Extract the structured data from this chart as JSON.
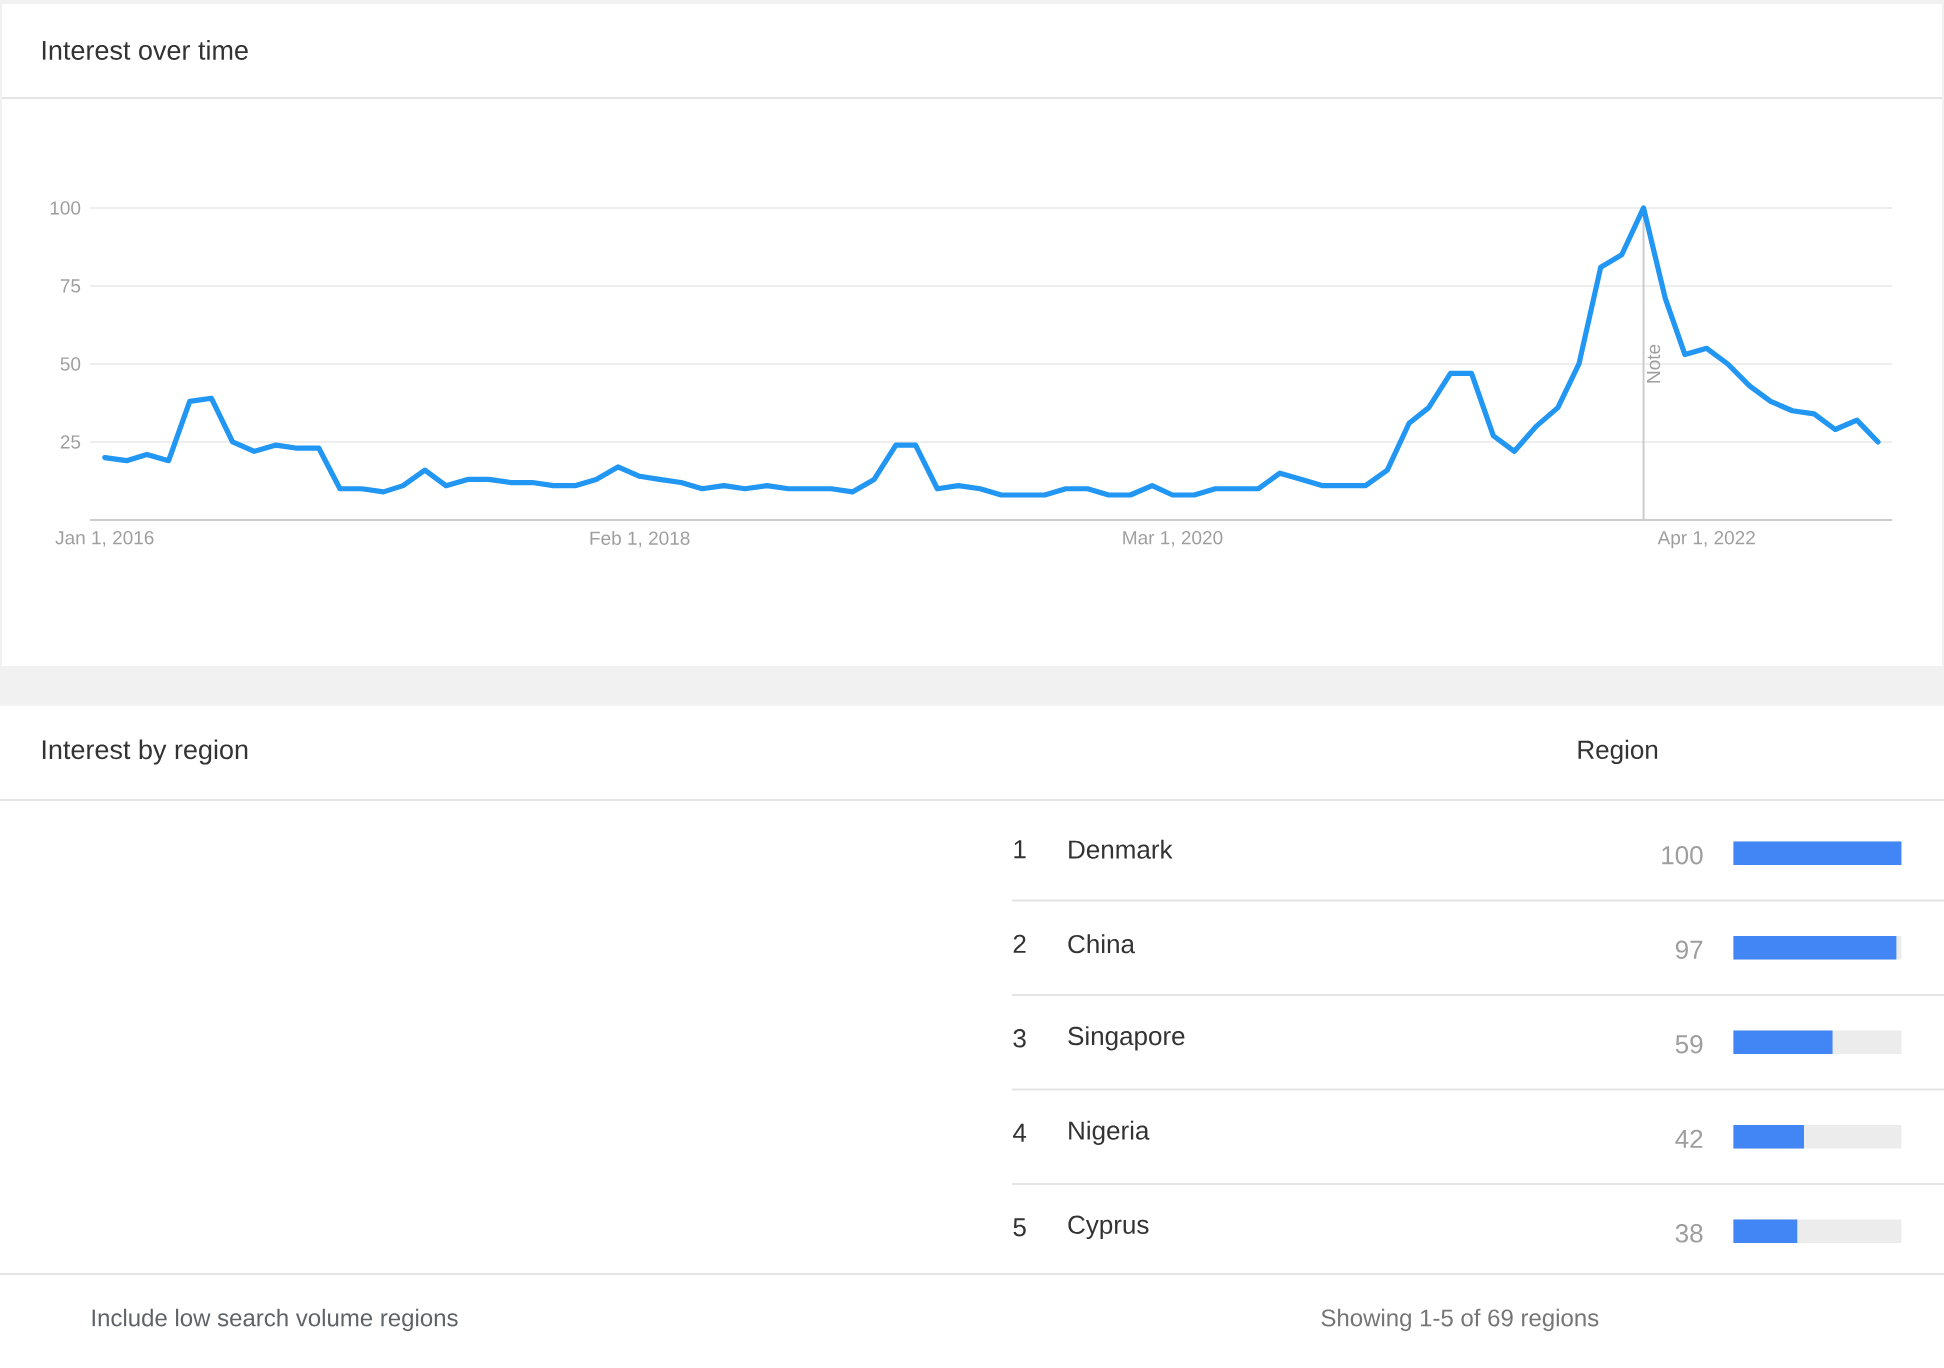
{
  "chart_data": [
    {
      "type": "line",
      "title": "Interest over time",
      "x": [
        "2016-01",
        "2016-02",
        "2016-03",
        "2016-04",
        "2016-05",
        "2016-06",
        "2016-07",
        "2016-08",
        "2016-09",
        "2016-10",
        "2016-11",
        "2016-12",
        "2017-01",
        "2017-02",
        "2017-03",
        "2017-04",
        "2017-05",
        "2017-06",
        "2017-07",
        "2017-08",
        "2017-09",
        "2017-10",
        "2017-11",
        "2017-12",
        "2018-01",
        "2018-02",
        "2018-03",
        "2018-04",
        "2018-05",
        "2018-06",
        "2018-07",
        "2018-08",
        "2018-09",
        "2018-10",
        "2018-11",
        "2018-12",
        "2019-01",
        "2019-02",
        "2019-03",
        "2019-04",
        "2019-05",
        "2019-06",
        "2019-07",
        "2019-08",
        "2019-09",
        "2019-10",
        "2019-11",
        "2019-12",
        "2020-01",
        "2020-02",
        "2020-03",
        "2020-04",
        "2020-05",
        "2020-06",
        "2020-07",
        "2020-08",
        "2020-09",
        "2020-10",
        "2020-11",
        "2020-12",
        "2021-01",
        "2021-02",
        "2021-03",
        "2021-04",
        "2021-05",
        "2021-06",
        "2021-07",
        "2021-08",
        "2021-09",
        "2021-10",
        "2021-11",
        "2021-12",
        "2022-01",
        "2022-02",
        "2022-03",
        "2022-04",
        "2022-05",
        "2022-06",
        "2022-07",
        "2022-08",
        "2022-09",
        "2022-10",
        "2022-11",
        "2022-12"
      ],
      "values": [
        20,
        19,
        21,
        19,
        38,
        39,
        25,
        22,
        24,
        23,
        23,
        10,
        10,
        9,
        11,
        16,
        11,
        13,
        13,
        12,
        12,
        11,
        11,
        13,
        17,
        14,
        13,
        12,
        10,
        11,
        10,
        11,
        10,
        10,
        10,
        9,
        13,
        24,
        24,
        10,
        11,
        10,
        8,
        8,
        8,
        10,
        10,
        8,
        8,
        11,
        8,
        8,
        10,
        10,
        10,
        15,
        13,
        11,
        11,
        11,
        16,
        31,
        36,
        47,
        47,
        27,
        22,
        30,
        36,
        50,
        81,
        85,
        100,
        71,
        53,
        55,
        50,
        43,
        38,
        35,
        34,
        29,
        32,
        25
      ],
      "color": "#2196f3",
      "xlim": [
        "2015-12-11",
        "2022-12-21"
      ],
      "xticks": [
        {
          "value": "2016-01-01",
          "label": "Jan 1, 2016"
        },
        {
          "value": "2018-02-01",
          "label": "Feb 1, 2018"
        },
        {
          "value": "2020-03-01",
          "label": "Mar 1, 2020"
        },
        {
          "value": "2022-04-01",
          "label": "Apr 1, 2022"
        }
      ],
      "ylim": [
        0,
        100
      ],
      "yticks": [
        25,
        50,
        75,
        100
      ],
      "grid": "y",
      "ref_lines": [
        {
          "axis": "x",
          "value": "2022-01",
          "label": "Note",
          "color": "#cccccc"
        }
      ]
    },
    {
      "type": "bar",
      "orientation": "horizontal",
      "categories": [
        "Denmark",
        "China",
        "Singapore",
        "Nigeria",
        "Cyprus"
      ],
      "values": [
        100,
        97,
        59,
        42,
        38
      ],
      "color": "#4285f4",
      "xlim": [
        0,
        100
      ],
      "data_labels": true,
      "tick_labels": "y",
      "annotations": [
        "1",
        "2",
        "3",
        "4",
        "5",
        "Interest by region",
        "Region",
        "Include low search volume regions",
        "Showing 1-5 of 69 regions"
      ]
    }
  ]
}
